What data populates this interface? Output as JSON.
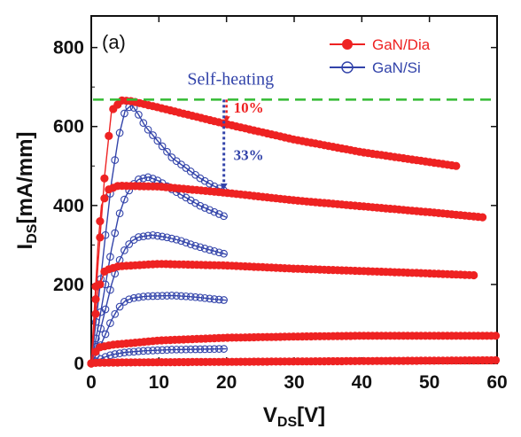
{
  "chart_data": {
    "type": "line",
    "panel_label": "(a)",
    "xlabel_main": "V",
    "xlabel_sub": "DS",
    "xlabel_unit": "[V]",
    "ylabel_main": "I",
    "ylabel_sub": "DS",
    "ylabel_unit": "[mA/mm]",
    "xlim": [
      0,
      60
    ],
    "ylim": [
      0,
      880
    ],
    "xticks": [
      "0",
      "10",
      "20",
      "30",
      "40",
      "50",
      "60"
    ],
    "yticks": [
      "0",
      "200",
      "400",
      "600",
      "800"
    ],
    "xtick_values": [
      0,
      10,
      20,
      30,
      40,
      50,
      60
    ],
    "ytick_values": [
      0,
      200,
      400,
      600,
      800
    ],
    "legend": [
      {
        "label": "GaN/Dia",
        "color": "#ee2222",
        "marker": "filled-circle"
      },
      {
        "label": "GaN/Si",
        "color": "#3344aa",
        "marker": "open-circle"
      }
    ],
    "reference_line": {
      "y": 668,
      "color": "#33bb33",
      "style": "dashed"
    },
    "annotations": {
      "self_heating": {
        "text": "Self-heating",
        "color": "#3344aa"
      },
      "drop_dia": {
        "text": "10%",
        "color": "#ee2222",
        "x": 20,
        "y_from": 668,
        "y_to": 610
      },
      "drop_si": {
        "text": "33%",
        "color": "#3344aa",
        "x": 20,
        "y_from": 668,
        "y_to": 440
      }
    },
    "series": [
      {
        "name": "GaN/Dia",
        "color": "#ee2222",
        "marker": "filled",
        "curves": [
          {
            "knee": 3,
            "vmax": 54,
            "points": [
              [
                0,
                0
              ],
              [
                1,
                250
              ],
              [
                2,
                480
              ],
              [
                3,
                640
              ],
              [
                4.5,
                666
              ],
              [
                6,
                664
              ],
              [
                10,
                648
              ],
              [
                20,
                606
              ],
              [
                30,
                567
              ],
              [
                40,
                535
              ],
              [
                54,
                500
              ]
            ]
          },
          {
            "knee": 2.5,
            "vmax": 58,
            "points": [
              [
                0,
                0
              ],
              [
                0.5,
                150
              ],
              [
                1,
                300
              ],
              [
                1.5,
                400
              ],
              [
                2.5,
                440
              ],
              [
                4,
                450
              ],
              [
                10,
                448
              ],
              [
                20,
                432
              ],
              [
                30,
                413
              ],
              [
                40,
                398
              ],
              [
                50,
                383
              ],
              [
                58,
                370
              ]
            ]
          },
          {
            "knee": 2,
            "vmax": 57,
            "points": [
              [
                0,
                0
              ],
              [
                0.5,
                100
              ],
              [
                1,
                185
              ],
              [
                2,
                235
              ],
              [
                4,
                246
              ],
              [
                10,
                252
              ],
              [
                20,
                248
              ],
              [
                30,
                240
              ],
              [
                40,
                234
              ],
              [
                50,
                228
              ],
              [
                57,
                223
              ]
            ]
          },
          {
            "knee": 2,
            "vmax": 60,
            "points": [
              [
                0,
                0
              ],
              [
                0.5,
                25
              ],
              [
                1,
                40
              ],
              [
                3,
                47
              ],
              [
                10,
                58
              ],
              [
                20,
                65
              ],
              [
                30,
                68
              ],
              [
                40,
                70
              ],
              [
                50,
                70
              ],
              [
                60,
                70
              ]
            ]
          },
          {
            "knee": 1,
            "vmax": 60,
            "points": [
              [
                0,
                0
              ],
              [
                1,
                2
              ],
              [
                10,
                3
              ],
              [
                20,
                4
              ],
              [
                30,
                5
              ],
              [
                40,
                6
              ],
              [
                50,
                7
              ],
              [
                60,
                8
              ]
            ]
          }
        ]
      },
      {
        "name": "GaN/Si",
        "color": "#3344aa",
        "marker": "open",
        "curves": [
          {
            "knee": 5.5,
            "vmax": 20,
            "points": [
              [
                0,
                0
              ],
              [
                1,
                150
              ],
              [
                2,
                310
              ],
              [
                3,
                460
              ],
              [
                4,
                570
              ],
              [
                5,
                640
              ],
              [
                6,
                655
              ],
              [
                7,
                630
              ],
              [
                8,
                600
              ],
              [
                10,
                560
              ],
              [
                12,
                520
              ],
              [
                14,
                495
              ],
              [
                16,
                470
              ],
              [
                18,
                450
              ],
              [
                20,
                435
              ]
            ]
          },
          {
            "knee": 8.5,
            "vmax": 20,
            "points": [
              [
                0,
                0
              ],
              [
                1,
                90
              ],
              [
                2,
                190
              ],
              [
                3,
                290
              ],
              [
                4,
                370
              ],
              [
                5,
                420
              ],
              [
                6,
                450
              ],
              [
                7,
                466
              ],
              [
                8.5,
                472
              ],
              [
                10,
                462
              ],
              [
                12,
                440
              ],
              [
                14,
                420
              ],
              [
                16,
                400
              ],
              [
                18,
                385
              ],
              [
                20,
                370
              ]
            ]
          },
          {
            "knee": 9,
            "vmax": 20,
            "points": [
              [
                0,
                0
              ],
              [
                1,
                60
              ],
              [
                2,
                130
              ],
              [
                3,
                200
              ],
              [
                4,
                255
              ],
              [
                5,
                290
              ],
              [
                6,
                310
              ],
              [
                7,
                320
              ],
              [
                9,
                325
              ],
              [
                11,
                320
              ],
              [
                13,
                312
              ],
              [
                15,
                300
              ],
              [
                17,
                290
              ],
              [
                20,
                276
              ]
            ]
          },
          {
            "knee": 12,
            "vmax": 20,
            "points": [
              [
                0,
                0
              ],
              [
                1,
                30
              ],
              [
                2,
                70
              ],
              [
                3,
                110
              ],
              [
                4,
                140
              ],
              [
                5,
                158
              ],
              [
                6,
                165
              ],
              [
                8,
                170
              ],
              [
                10,
                171
              ],
              [
                12,
                172
              ],
              [
                14,
                170
              ],
              [
                16,
                167
              ],
              [
                18,
                163
              ],
              [
                20,
                160
              ]
            ]
          },
          {
            "knee": 12,
            "vmax": 20,
            "points": [
              [
                0,
                0
              ],
              [
                1,
                8
              ],
              [
                2,
                16
              ],
              [
                3,
                22
              ],
              [
                5,
                28
              ],
              [
                8,
                32
              ],
              [
                12,
                35
              ],
              [
                16,
                36
              ],
              [
                20,
                37
              ]
            ]
          }
        ]
      }
    ]
  }
}
